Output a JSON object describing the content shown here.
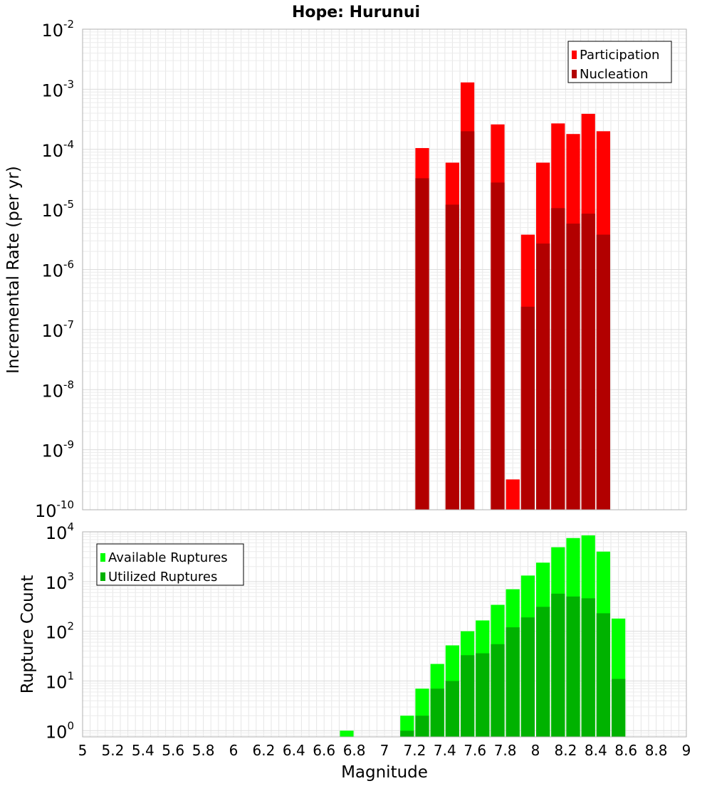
{
  "chart_data": [
    {
      "type": "bar",
      "title": "Hope: Hurunui",
      "xlabel": "Magnitude",
      "ylabel": "Incremental Rate (per yr)",
      "yscale": "log",
      "ylim": [
        1e-10,
        0.01
      ],
      "xlim": [
        5,
        9
      ],
      "y_ticks": [
        {
          "base": "10",
          "exp": "-10"
        },
        {
          "base": "10",
          "exp": "-9"
        },
        {
          "base": "10",
          "exp": "-8"
        },
        {
          "base": "10",
          "exp": "-7"
        },
        {
          "base": "10",
          "exp": "-6"
        },
        {
          "base": "10",
          "exp": "-5"
        },
        {
          "base": "10",
          "exp": "-4"
        },
        {
          "base": "10",
          "exp": "-3"
        },
        {
          "base": "10",
          "exp": "-2"
        }
      ],
      "legend": [
        {
          "label": "Participation",
          "color": "#ff0000"
        },
        {
          "label": "Nucleation",
          "color": "#b20000"
        }
      ],
      "legend_position": "top-right",
      "bin_width": 0.1,
      "series": [
        {
          "name": "Participation",
          "color": "#ff0000",
          "x": [
            7.25,
            7.45,
            7.55,
            7.75,
            7.85,
            7.95,
            8.05,
            8.15,
            8.25,
            8.35,
            8.45
          ],
          "values": [
            0.000105,
            6e-05,
            0.0013,
            0.00026,
            3.2e-10,
            3.8e-06,
            6e-05,
            0.00027,
            0.00018,
            0.00039,
            0.0002
          ]
        },
        {
          "name": "Nucleation",
          "color": "#b20000",
          "x": [
            7.25,
            7.45,
            7.55,
            7.75,
            7.95,
            8.05,
            8.15,
            8.25,
            8.35,
            8.45
          ],
          "values": [
            3.3e-05,
            1.2e-05,
            0.0002,
            2.8e-05,
            2.4e-07,
            2.7e-06,
            1.05e-05,
            5.8e-06,
            8.5e-06,
            3.8e-06
          ]
        }
      ]
    },
    {
      "type": "bar",
      "title": "",
      "xlabel": "Magnitude",
      "ylabel": "Rupture Count",
      "yscale": "log",
      "ylim": [
        0.75,
        10000
      ],
      "xlim": [
        5,
        9
      ],
      "x_ticks": [
        "5",
        "5.2",
        "5.4",
        "5.6",
        "5.8",
        "6",
        "6.2",
        "6.4",
        "6.6",
        "6.8",
        "7",
        "7.2",
        "7.4",
        "7.6",
        "7.8",
        "8",
        "8.2",
        "8.4",
        "8.6",
        "8.8",
        "9"
      ],
      "y_ticks": [
        {
          "base": "10",
          "exp": "0"
        },
        {
          "base": "10",
          "exp": "1"
        },
        {
          "base": "10",
          "exp": "2"
        },
        {
          "base": "10",
          "exp": "3"
        },
        {
          "base": "10",
          "exp": "4"
        }
      ],
      "legend": [
        {
          "label": "Available Ruptures",
          "color": "#00ff00"
        },
        {
          "label": "Utilized Ruptures",
          "color": "#00b200"
        }
      ],
      "legend_position": "top-left",
      "bin_width": 0.1,
      "series": [
        {
          "name": "Available Ruptures",
          "color": "#00ff00",
          "x": [
            6.75,
            7.15,
            7.25,
            7.35,
            7.45,
            7.55,
            7.65,
            7.75,
            7.85,
            7.95,
            8.05,
            8.15,
            8.25,
            8.35,
            8.45,
            8.55
          ],
          "values": [
            1,
            2,
            7,
            22,
            52,
            100,
            165,
            340,
            700,
            1320,
            2400,
            4900,
            7500,
            8500,
            4000,
            180
          ]
        },
        {
          "name": "Utilized Ruptures",
          "color": "#00b200",
          "x": [
            7.15,
            7.25,
            7.35,
            7.45,
            7.55,
            7.65,
            7.75,
            7.85,
            7.95,
            8.05,
            8.15,
            8.25,
            8.35,
            8.45,
            8.55
          ],
          "values": [
            1,
            2,
            7,
            10,
            33,
            36,
            55,
            120,
            190,
            310,
            570,
            500,
            460,
            230,
            11
          ]
        }
      ]
    }
  ]
}
